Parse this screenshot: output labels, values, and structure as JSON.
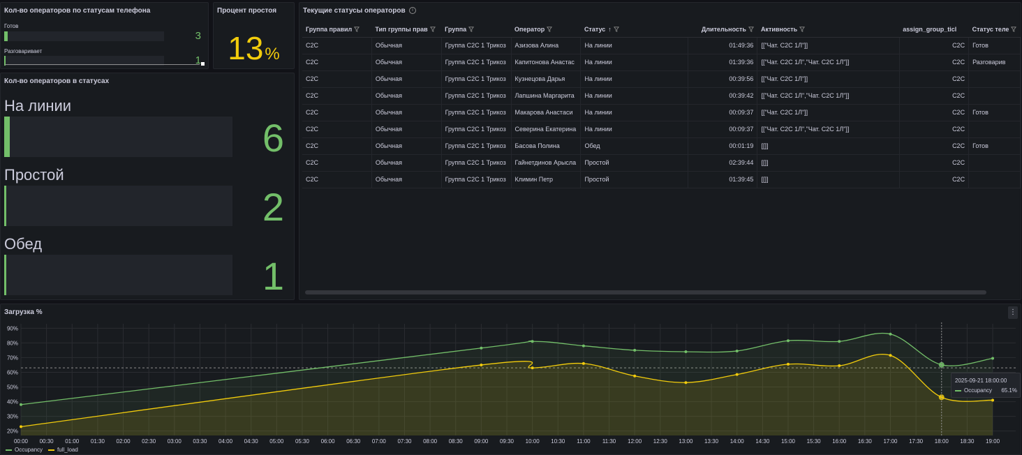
{
  "colors": {
    "green": "#73bf69",
    "yellow": "#f2cc0c",
    "orange": "#fade2a"
  },
  "phone_panel": {
    "title": "Кол-во операторов по статусам телефона",
    "items": [
      {
        "label": "Готов",
        "value": "3",
        "fraction": 0.02
      },
      {
        "label": "Разговаривает",
        "value": "1",
        "fraction": 0.01
      }
    ]
  },
  "idle_panel": {
    "title": "Процент простоя",
    "value": "13",
    "unit": "%"
  },
  "status_panel": {
    "title": "Кол-во операторов в статусах",
    "items": [
      {
        "label": "На линии",
        "value": "6",
        "fraction": 0.025
      },
      {
        "label": "Простой",
        "value": "2",
        "fraction": 0.008
      },
      {
        "label": "Обед",
        "value": "1",
        "fraction": 0.004
      }
    ]
  },
  "table_panel": {
    "title": "Текущие статусы операторов",
    "columns": [
      "Группа правил",
      "Тип группы прав",
      "Группа",
      "Оператор",
      "Статус",
      "Длительность",
      "Активность",
      "assign_group_ticl",
      "Статус теле"
    ],
    "rows": [
      [
        "C2C",
        "Обычная",
        "Группа C2C 1 Трикоз",
        "Азизова Алина",
        "На линии",
        "01:49:36",
        "[[\"Чат. C2C 1Л\"]]",
        "C2C",
        "Готов"
      ],
      [
        "C2C",
        "Обычная",
        "Группа C2C 1 Трикоз",
        "Капитонова Анастас",
        "На линии",
        "01:39:36",
        "[[\"Чат. C2C 1Л\",\"Чат. C2C 1Л\"]]",
        "C2C",
        "Разговарив"
      ],
      [
        "C2C",
        "Обычная",
        "Группа C2C 1 Трикоз",
        "Кузнецова Дарья",
        "На линии",
        "00:39:56",
        "[[\"Чат. C2C 1Л\"]]",
        "C2C",
        ""
      ],
      [
        "C2C",
        "Обычная",
        "Группа C2C 1 Трикоз",
        "Лапшина Маргарита",
        "На линии",
        "00:39:42",
        "[[\"Чат. C2C 1Л\",\"Чат. C2C 1Л\"]]",
        "C2C",
        ""
      ],
      [
        "C2C",
        "Обычная",
        "Группа C2C 1 Трикоз",
        "Макарова Анастаси",
        "На линии",
        "00:09:37",
        "[[\"Чат. C2C 1Л\"]]",
        "C2C",
        "Готов"
      ],
      [
        "C2C",
        "Обычная",
        "Группа C2C 1 Трикоз",
        "Северина Екатерина",
        "На линии",
        "00:09:37",
        "[[\"Чат. C2C 1Л\",\"Чат. C2C 1Л\"]]",
        "C2C",
        ""
      ],
      [
        "C2C",
        "Обычная",
        "Группа C2C 1 Трикоз",
        "Басова Полина",
        "Обед",
        "00:01:19",
        "[[]]",
        "C2C",
        "Готов"
      ],
      [
        "C2C",
        "Обычная",
        "Группа C2C 1 Трикоз",
        "Гайнетдинов Арысла",
        "Простой",
        "02:39:44",
        "[[]]",
        "C2C",
        ""
      ],
      [
        "C2C",
        "Обычная",
        "Группа C2C 1 Трикоз",
        "Климин Петр",
        "Простой",
        "01:39:45",
        "[[]]",
        "C2C",
        ""
      ]
    ]
  },
  "chart_panel": {
    "title": "Загрузка %"
  },
  "tooltip": {
    "time": "2025-09-21 18:00:00",
    "series": "Occupancy",
    "value": "65.1%"
  },
  "chart_data": {
    "type": "line",
    "title": "Загрузка %",
    "y_ticks": [
      "20%",
      "30%",
      "40%",
      "50%",
      "60%",
      "70%",
      "80%",
      "90%"
    ],
    "ylim": [
      17,
      93
    ],
    "x_ticks": [
      "00:00",
      "00:30",
      "01:00",
      "01:30",
      "02:00",
      "02:30",
      "03:00",
      "03:30",
      "04:00",
      "04:30",
      "05:00",
      "05:30",
      "06:00",
      "06:30",
      "07:00",
      "07:30",
      "08:00",
      "08:30",
      "09:00",
      "09:30",
      "10:00",
      "10:30",
      "11:00",
      "11:30",
      "12:00",
      "12:30",
      "13:00",
      "13:30",
      "14:00",
      "14:30",
      "15:00",
      "15:30",
      "16:00",
      "16:30",
      "17:00",
      "17:30",
      "18:00",
      "18:30",
      "19:00"
    ],
    "threshold": 63,
    "crosshair_hour": 18,
    "legend_position": "bottom-left",
    "series": [
      {
        "name": "Occupancy",
        "color": "#73bf69",
        "points": [
          [
            0,
            38
          ],
          [
            9,
            76.5
          ],
          [
            10,
            81
          ],
          [
            11,
            78
          ],
          [
            12,
            75
          ],
          [
            13,
            74
          ],
          [
            14,
            74.5
          ],
          [
            15,
            81.5
          ],
          [
            16,
            81
          ],
          [
            17,
            86
          ],
          [
            18,
            65.1
          ],
          [
            19,
            69.5
          ]
        ]
      },
      {
        "name": "full_load",
        "color": "#f2cc0c",
        "points": [
          [
            0,
            23
          ],
          [
            9,
            65
          ],
          [
            10,
            63
          ],
          [
            11,
            66
          ],
          [
            12,
            57.5
          ],
          [
            13,
            53
          ],
          [
            14,
            58.5
          ],
          [
            15,
            65.5
          ],
          [
            16,
            64.5
          ],
          [
            17,
            71.5
          ],
          [
            18,
            43
          ],
          [
            19,
            41
          ]
        ]
      }
    ]
  }
}
